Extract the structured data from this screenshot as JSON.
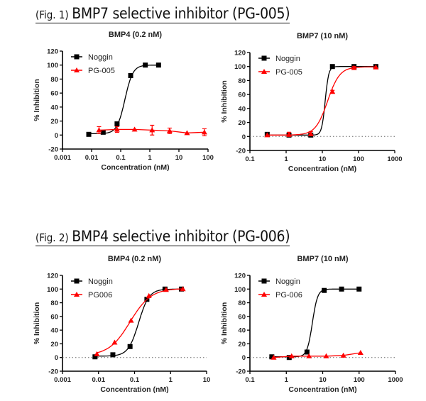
{
  "figures": [
    {
      "prefix": "(Fig. 1)",
      "title": "BMP7 selective inhibitor (PG-005)"
    },
    {
      "prefix": "(Fig. 2)",
      "title": "BMP4 selective inhibitor (PG-006)"
    }
  ],
  "chart_data": [
    {
      "type": "line",
      "title": "BMP4 (0.2 nM)",
      "xlabel": "Concentration (nM)",
      "ylabel": "% Inhibition",
      "xscale": "log",
      "xlim": [
        0.001,
        100
      ],
      "ylim": [
        -20,
        120
      ],
      "xticks": [
        "0.001",
        "0.01",
        "0.1",
        "1",
        "10",
        "100"
      ],
      "yticks": [
        "-20",
        "0",
        "20",
        "40",
        "60",
        "80",
        "100",
        "120"
      ],
      "legend": "top-left",
      "zero_line": false,
      "series": [
        {
          "name": "Noggin",
          "color": "#000000",
          "marker": "square",
          "x": [
            0.008,
            0.025,
            0.075,
            0.22,
            0.7,
            2
          ],
          "y": [
            1,
            4,
            16,
            85,
            100,
            100
          ]
        },
        {
          "name": "PG-005",
          "color": "#ff0000",
          "marker": "triangle",
          "x": [
            0.018,
            0.075,
            0.3,
            1.2,
            4.8,
            19,
            75
          ],
          "y": [
            7,
            8,
            8,
            7,
            6,
            3,
            4
          ],
          "error": [
            5,
            4,
            1,
            7,
            4,
            1,
            5
          ]
        }
      ]
    },
    {
      "type": "line",
      "title": "BMP7 (10 nM)",
      "xlabel": "Concentration (nM)",
      "ylabel": "% Inhibition",
      "xscale": "log",
      "xlim": [
        0.1,
        1000
      ],
      "ylim": [
        -20,
        120
      ],
      "xticks": [
        "0.1",
        "1",
        "10",
        "100",
        "1000"
      ],
      "yticks": [
        "-20",
        "0",
        "20",
        "40",
        "60",
        "80",
        "100",
        "120"
      ],
      "legend": "top-left",
      "zero_line": true,
      "series": [
        {
          "name": "Noggin",
          "color": "#000000",
          "marker": "square",
          "x": [
            0.3,
            1.2,
            4.8,
            19,
            75,
            300
          ],
          "y": [
            3,
            2,
            2,
            100,
            100,
            100
          ]
        },
        {
          "name": "PG-005",
          "color": "#ff0000",
          "marker": "triangle",
          "x": [
            0.3,
            1.2,
            4.8,
            19,
            75,
            300
          ],
          "y": [
            2,
            3,
            4,
            64,
            98,
            99
          ],
          "error": [
            1,
            3,
            3,
            2,
            2,
            1
          ]
        }
      ]
    },
    {
      "type": "line",
      "title": "BMP4 (0.2 nM)",
      "xlabel": "Concentration (nM)",
      "ylabel": "% Inhibition",
      "xscale": "log",
      "xlim": [
        0.001,
        10
      ],
      "ylim": [
        -20,
        120
      ],
      "xticks": [
        "0.001",
        "0.01",
        "0.1",
        "1",
        "10"
      ],
      "yticks": [
        "-20",
        "0",
        "20",
        "40",
        "60",
        "80",
        "100",
        "120"
      ],
      "legend": "top-left",
      "zero_line": true,
      "series": [
        {
          "name": "Noggin",
          "color": "#000000",
          "marker": "square",
          "x": [
            0.008,
            0.025,
            0.075,
            0.22,
            0.7,
            2
          ],
          "y": [
            1,
            4,
            16,
            85,
            100,
            100
          ]
        },
        {
          "name": "PG006",
          "color": "#ff0000",
          "marker": "triangle",
          "x": [
            0.009,
            0.028,
            0.08,
            0.25,
            0.75,
            2.2
          ],
          "y": [
            5,
            22,
            54,
            90,
            99,
            100
          ]
        }
      ]
    },
    {
      "type": "line",
      "title": "BMP7 (10 nM)",
      "xlabel": "Concentration (nM)",
      "ylabel": "% Inhibition",
      "xscale": "log",
      "xlim": [
        0.1,
        1000
      ],
      "ylim": [
        -20,
        120
      ],
      "xticks": [
        "0.1",
        "1",
        "10",
        "100",
        "1000"
      ],
      "yticks": [
        "-20",
        "0",
        "20",
        "40",
        "60",
        "80",
        "100",
        "120"
      ],
      "legend": "top-left",
      "zero_line": true,
      "series": [
        {
          "name": "Noggin",
          "color": "#000000",
          "marker": "square",
          "x": [
            0.4,
            1.2,
            3.7,
            11,
            33,
            100
          ],
          "y": [
            1,
            0,
            8,
            98,
            100,
            100
          ]
        },
        {
          "name": "PG-006",
          "color": "#ff0000",
          "marker": "triangle",
          "x": [
            0.45,
            1.4,
            4.2,
            12.5,
            37,
            110
          ],
          "y": [
            0,
            2,
            2,
            2,
            3,
            7
          ]
        }
      ]
    }
  ]
}
